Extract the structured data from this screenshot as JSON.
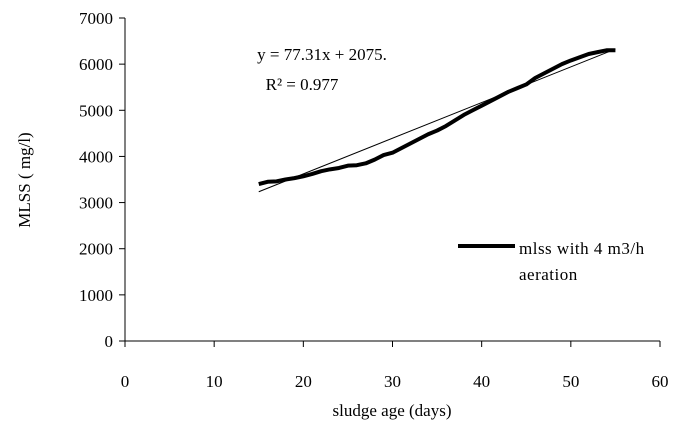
{
  "chart_data": {
    "type": "line",
    "x_label": "sludge age (days)",
    "y_label": "MLSS ( mg/l)",
    "xlim": [
      0,
      60
    ],
    "xticks": [
      0,
      10,
      20,
      30,
      40,
      50,
      60
    ],
    "ylim": [
      0,
      7000
    ],
    "yticks": [
      0,
      1000,
      2000,
      3000,
      4000,
      5000,
      6000,
      7000
    ],
    "grid": false,
    "legend_position": "right",
    "series": [
      {
        "name": "mlss with 4 m3/h aeration",
        "color": "#000000",
        "x": [
          15,
          16,
          17,
          18,
          19,
          20,
          21,
          22,
          23,
          24,
          25,
          26,
          27,
          28,
          29,
          30,
          31,
          32,
          33,
          34,
          35,
          36,
          37,
          38,
          39,
          40,
          41,
          42,
          43,
          44,
          45,
          46,
          47,
          48,
          49,
          50,
          51,
          52,
          53,
          54,
          55
        ],
        "values": [
          3400,
          3450,
          3460,
          3500,
          3530,
          3570,
          3620,
          3680,
          3720,
          3750,
          3800,
          3810,
          3850,
          3930,
          4030,
          4080,
          4180,
          4280,
          4380,
          4480,
          4560,
          4660,
          4780,
          4900,
          5000,
          5100,
          5200,
          5300,
          5400,
          5480,
          5560,
          5700,
          5800,
          5900,
          6000,
          6080,
          6150,
          6220,
          6260,
          6300,
          6300
        ]
      }
    ],
    "trendline": {
      "color": "#000000",
      "x": [
        15,
        55
      ],
      "values": [
        3235,
        6327
      ],
      "equation": "y = 77.31x + 2075.",
      "r_squared": "R² = 0.977"
    }
  }
}
